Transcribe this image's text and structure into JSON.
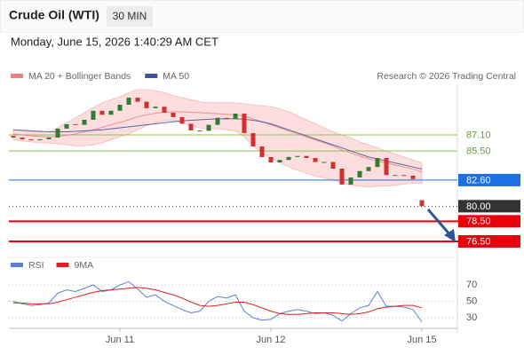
{
  "chart_data": {
    "type": "candlestick",
    "title": "Crude Oil (WTI)",
    "timeframe": "30 MIN",
    "subtitle": "Monday, June 15, 2026 1:40:29 AM CET",
    "source": "Research © 2026 Trading Central",
    "categories": [
      null,
      null,
      null,
      null,
      null,
      null,
      null,
      null,
      null,
      null,
      null,
      null,
      "Jun 11",
      null,
      null,
      null,
      null,
      null,
      null,
      null,
      null,
      null,
      null,
      null,
      null,
      null,
      null,
      null,
      null,
      "Jun 12",
      null,
      null,
      null,
      null,
      null,
      null,
      null,
      null,
      null,
      null,
      null,
      null,
      null,
      null,
      null,
      null,
      "Jun 15"
    ],
    "open": [
      87.0,
      86.83,
      86.66,
      86.57,
      86.66,
      86.83,
      87.72,
      88.16,
      88.1,
      88.6,
      89.49,
      89.1,
      89.5,
      90.1,
      90.8,
      90.4,
      89.75,
      89.9,
      89.31,
      88.87,
      88.2,
      87.54,
      87.5,
      88.1,
      88.8,
      88.7,
      89.22,
      87.28,
      85.95,
      84.89,
      84.36,
      84.6,
      84.9,
      85.0,
      84.8,
      84.4,
      84.4,
      83.74,
      82.15,
      82.86,
      83.5,
      83.9,
      84.8,
      83.1,
      83.1,
      83.04,
      80.6
    ],
    "close": [
      86.83,
      86.66,
      86.57,
      86.66,
      86.83,
      87.72,
      88.16,
      88.1,
      88.6,
      89.49,
      89.1,
      89.5,
      90.1,
      90.8,
      90.4,
      89.75,
      89.9,
      89.31,
      88.87,
      88.2,
      87.54,
      87.5,
      88.1,
      88.8,
      88.7,
      89.22,
      87.28,
      85.95,
      84.89,
      84.36,
      84.6,
      84.9,
      85.0,
      84.8,
      84.4,
      84.4,
      83.74,
      82.15,
      82.86,
      83.5,
      83.9,
      84.8,
      83.1,
      83.1,
      83.04,
      82.7,
      80.0
    ],
    "up_color": "#2e7d32",
    "down_color": "#d32f2f",
    "ylim": [
      75.35,
      92.13
    ],
    "bands": {
      "color": "#fbd3d3",
      "upper": [
        87.6,
        87.5,
        87.4,
        87.4,
        87.4,
        87.8,
        88.3,
        88.8,
        89.3,
        89.8,
        90.3,
        90.6,
        90.9,
        91.3,
        91.6,
        91.6,
        91.5,
        91.3,
        91.0,
        90.8,
        90.6,
        90.4,
        90.3,
        90.3,
        90.3,
        90.3,
        90.2,
        90.1,
        90.0,
        89.9,
        89.7,
        89.4,
        89.0,
        88.6,
        88.2,
        87.8,
        87.4,
        87.1,
        86.8,
        86.4,
        86.1,
        85.8,
        85.5,
        85.2,
        84.9,
        84.6,
        84.3
      ],
      "lower": [
        86.6,
        86.5,
        86.4,
        86.3,
        86.3,
        86.2,
        86.1,
        86.0,
        86.0,
        86.1,
        86.3,
        86.6,
        86.9,
        87.2,
        87.6,
        88.0,
        88.3,
        88.5,
        88.5,
        88.3,
        88.0,
        87.8,
        87.7,
        87.7,
        87.6,
        87.5,
        86.9,
        86.0,
        85.3,
        84.8,
        84.3,
        83.9,
        83.6,
        83.3,
        83.0,
        82.8,
        82.6,
        82.3,
        82.1,
        82.0,
        81.9,
        82.0,
        82.0,
        82.1,
        82.2,
        82.3,
        82.3
      ]
    },
    "overlays": [
      {
        "name": "MA 20 + Bollinger Bands",
        "color": "#f08080",
        "values": [
          87.2,
          87.1,
          87.0,
          86.95,
          86.9,
          86.95,
          87.05,
          87.2,
          87.4,
          87.6,
          87.85,
          88.1,
          88.35,
          88.6,
          88.9,
          89.1,
          89.25,
          89.35,
          89.4,
          89.4,
          89.35,
          89.3,
          89.25,
          89.2,
          89.15,
          89.1,
          88.95,
          88.7,
          88.4,
          88.1,
          87.8,
          87.5,
          87.2,
          86.9,
          86.6,
          86.3,
          86.0,
          85.6,
          85.3,
          85.0,
          84.7,
          84.5,
          84.3,
          84.1,
          83.9,
          83.7,
          83.4
        ]
      },
      {
        "name": "MA 50",
        "color": "#3f51a0",
        "values": [
          87.6,
          87.55,
          87.5,
          87.45,
          87.4,
          87.4,
          87.4,
          87.45,
          87.5,
          87.55,
          87.6,
          87.7,
          87.8,
          87.9,
          88.0,
          88.1,
          88.2,
          88.3,
          88.4,
          88.5,
          88.55,
          88.6,
          88.65,
          88.7,
          88.7,
          88.7,
          88.65,
          88.55,
          88.4,
          88.2,
          87.9,
          87.6,
          87.3,
          87.0,
          86.7,
          86.4,
          86.1,
          85.8,
          85.5,
          85.2,
          84.9,
          84.7,
          84.5,
          84.3,
          84.1,
          83.9,
          83.7
        ]
      }
    ],
    "levels": [
      {
        "value": 87.1,
        "label": "87.10",
        "color": "#8bc34a",
        "boxed": false
      },
      {
        "value": 85.5,
        "label": "85.50",
        "color": "#8bc34a",
        "boxed": false
      },
      {
        "value": 82.6,
        "label": "82.60",
        "color": "#1e6fe0",
        "boxed": true
      },
      {
        "value": 80.0,
        "label": "80.00",
        "color": "#333333",
        "boxed": true
      },
      {
        "value": 78.5,
        "label": "78.50",
        "color": "#e8000b",
        "boxed": true
      },
      {
        "value": 76.5,
        "label": "76.50",
        "color": "#e8000b",
        "boxed": true
      }
    ],
    "indicator": {
      "ylim": [
        17,
        82
      ],
      "yticks": [
        70,
        50,
        30
      ],
      "series": [
        {
          "name": "RSI",
          "color": "#5b7fd6",
          "values": [
            50,
            47,
            45,
            46,
            48,
            60,
            64,
            62,
            66,
            70,
            62,
            64,
            70,
            74,
            65,
            55,
            58,
            50,
            45,
            40,
            36,
            38,
            50,
            56,
            54,
            58,
            38,
            30,
            27,
            28,
            35,
            38,
            40,
            38,
            35,
            36,
            33,
            26,
            35,
            42,
            45,
            62,
            44,
            44,
            43,
            40,
            25
          ]
        },
        {
          "name": "9MA",
          "color": "#e02020",
          "values": [
            48,
            48,
            47,
            47,
            47,
            49,
            52,
            55,
            58,
            61,
            63,
            64,
            65,
            66,
            67,
            66,
            64,
            61,
            58,
            54,
            49,
            45,
            44,
            45,
            47,
            49,
            49,
            46,
            42,
            38,
            35,
            34,
            34,
            35,
            36,
            36,
            36,
            35,
            34,
            35,
            37,
            41,
            43,
            44,
            45,
            45,
            42
          ]
        }
      ]
    }
  }
}
